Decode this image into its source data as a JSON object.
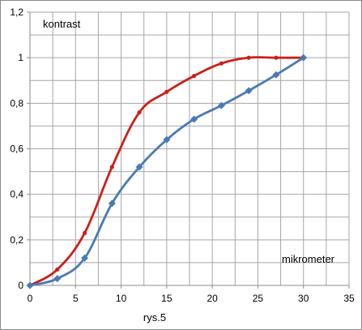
{
  "chart_data": {
    "type": "line",
    "xlim": [
      0,
      35
    ],
    "ylim": [
      0,
      1.2
    ],
    "x_ticks": [
      "0",
      "5",
      "10",
      "15",
      "20",
      "25",
      "30",
      "35"
    ],
    "y_ticks": [
      "0",
      "0,2",
      "0,4",
      "0,6",
      "0,8",
      "1",
      "1,2"
    ],
    "x_tick_values": [
      0,
      5,
      10,
      15,
      20,
      25,
      30,
      35
    ],
    "y_tick_values": [
      0,
      0.2,
      0.4,
      0.6,
      0.8,
      1.0,
      1.2
    ],
    "minor_x_step": 2.5,
    "minor_y_step": 0.1,
    "grid": true,
    "annotations": {
      "ylabel_text": "kontrast",
      "xlabel_text": "mikrometer",
      "caption": "rys.5"
    },
    "series": [
      {
        "color": "#cc1f1a",
        "marker": "small-dot",
        "smooth": true,
        "x": [
          0,
          3,
          6,
          9,
          12,
          15,
          18,
          21,
          24,
          27,
          30
        ],
        "y": [
          0,
          0.07,
          0.23,
          0.52,
          0.76,
          0.85,
          0.92,
          0.975,
          1.0,
          1.0,
          1.0
        ]
      },
      {
        "color": "#4a7ab4",
        "marker": "diamond",
        "smooth": true,
        "x": [
          0,
          3,
          6,
          9,
          12,
          15,
          18,
          21,
          24,
          27,
          30
        ],
        "y": [
          0,
          0.03,
          0.12,
          0.36,
          0.52,
          0.64,
          0.73,
          0.79,
          0.855,
          0.925,
          1.0
        ]
      }
    ]
  }
}
